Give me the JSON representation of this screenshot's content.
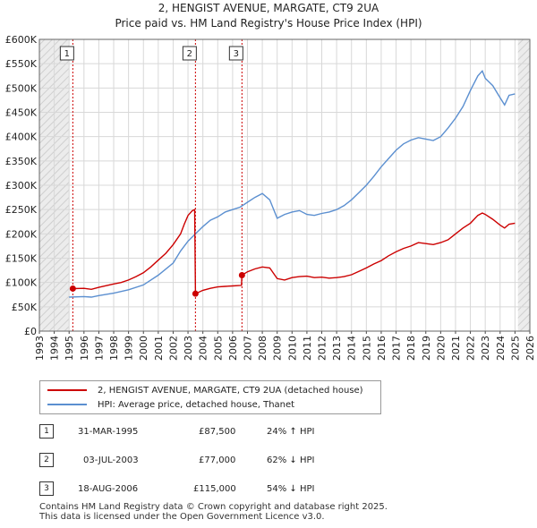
{
  "title_line1": "2, HENGIST AVENUE, MARGATE, CT9 2UA",
  "title_line2": "Price paid vs. HM Land Registry's House Price Index (HPI)",
  "colors": {
    "property": "#cc0000",
    "hpi": "#5b8fd0",
    "grid": "#d8d8d8",
    "shade": "#e6e6e6"
  },
  "legend": {
    "property_label": "2, HENGIST AVENUE, MARGATE, CT9 2UA (detached house)",
    "hpi_label": "HPI: Average price, detached house, Thanet"
  },
  "sales": [
    {
      "num": "1",
      "date": "31-MAR-1995",
      "price": "£87,500",
      "hpi": "24% ↑ HPI"
    },
    {
      "num": "2",
      "date": "03-JUL-2003",
      "price": "£77,000",
      "hpi": "62% ↓ HPI"
    },
    {
      "num": "3",
      "date": "18-AUG-2006",
      "price": "£115,000",
      "hpi": "54% ↓ HPI"
    }
  ],
  "footer": {
    "line1": "Contains HM Land Registry data © Crown copyright and database right 2025.",
    "line2": "This data is licensed under the Open Government Licence v3.0."
  },
  "chart_data": {
    "type": "line",
    "title": "2, HENGIST AVENUE, MARGATE, CT9 2UA",
    "subtitle": "Price paid vs. HM Land Registry's House Price Index (HPI)",
    "xlim": [
      1993,
      2026
    ],
    "ylim": [
      0,
      600000
    ],
    "x_ticks": [
      1993,
      1994,
      1995,
      1996,
      1997,
      1998,
      1999,
      2000,
      2001,
      2002,
      2003,
      2004,
      2005,
      2006,
      2007,
      2008,
      2009,
      2010,
      2011,
      2012,
      2013,
      2014,
      2015,
      2016,
      2017,
      2018,
      2019,
      2020,
      2021,
      2022,
      2023,
      2024,
      2025,
      2026
    ],
    "y_ticks": [
      0,
      50000,
      100000,
      150000,
      200000,
      250000,
      300000,
      350000,
      400000,
      450000,
      500000,
      550000,
      600000
    ],
    "y_tick_labels": [
      "£0",
      "£50K",
      "£100K",
      "£150K",
      "£200K",
      "£250K",
      "£300K",
      "£350K",
      "£400K",
      "£450K",
      "£500K",
      "£550K",
      "£600K"
    ],
    "hatched_before": 1995.0,
    "hatched_after": 2025.2,
    "grid": true,
    "sale_markers": [
      {
        "label": "1",
        "x": 1995.25,
        "y": 87500
      },
      {
        "label": "2",
        "x": 2003.5,
        "y": 77000
      },
      {
        "label": "3",
        "x": 2006.63,
        "y": 115000
      }
    ],
    "series": [
      {
        "name": "2, HENGIST AVENUE, MARGATE, CT9 2UA (detached house)",
        "color": "#cc0000",
        "points": [
          [
            1995.25,
            87500
          ],
          [
            1996,
            88000
          ],
          [
            1996.5,
            86000
          ],
          [
            1997,
            90000
          ],
          [
            1998,
            97000
          ],
          [
            1998.5,
            100000
          ],
          [
            1999,
            105000
          ],
          [
            1999.5,
            112000
          ],
          [
            2000,
            120000
          ],
          [
            2000.5,
            132000
          ],
          [
            2001,
            146000
          ],
          [
            2001.5,
            160000
          ],
          [
            2002,
            178000
          ],
          [
            2002.5,
            200000
          ],
          [
            2002.75,
            220000
          ],
          [
            2003.0,
            238000
          ],
          [
            2003.3,
            248000
          ],
          [
            2003.45,
            250000
          ],
          [
            2003.5,
            77000
          ],
          [
            2004,
            84000
          ],
          [
            2004.5,
            88000
          ],
          [
            2005,
            91000
          ],
          [
            2005.5,
            92000
          ],
          [
            2006,
            93000
          ],
          [
            2006.6,
            94000
          ],
          [
            2006.63,
            115000
          ],
          [
            2007,
            122000
          ],
          [
            2007.5,
            128000
          ],
          [
            2008,
            132000
          ],
          [
            2008.5,
            130000
          ],
          [
            2009,
            108000
          ],
          [
            2009.5,
            105000
          ],
          [
            2010,
            110000
          ],
          [
            2010.5,
            112000
          ],
          [
            2011,
            113000
          ],
          [
            2011.5,
            110000
          ],
          [
            2012,
            111000
          ],
          [
            2012.5,
            109000
          ],
          [
            2013,
            110000
          ],
          [
            2013.5,
            112000
          ],
          [
            2014,
            116000
          ],
          [
            2014.5,
            123000
          ],
          [
            2015,
            130000
          ],
          [
            2015.5,
            138000
          ],
          [
            2016,
            145000
          ],
          [
            2016.5,
            155000
          ],
          [
            2017,
            163000
          ],
          [
            2017.5,
            170000
          ],
          [
            2018,
            175000
          ],
          [
            2018.5,
            182000
          ],
          [
            2019,
            180000
          ],
          [
            2019.5,
            178000
          ],
          [
            2020,
            182000
          ],
          [
            2020.5,
            188000
          ],
          [
            2021,
            200000
          ],
          [
            2021.5,
            212000
          ],
          [
            2022,
            222000
          ],
          [
            2022.5,
            238000
          ],
          [
            2022.8,
            243000
          ],
          [
            2023,
            240000
          ],
          [
            2023.5,
            230000
          ],
          [
            2024,
            218000
          ],
          [
            2024.3,
            212000
          ],
          [
            2024.6,
            220000
          ],
          [
            2025.0,
            222000
          ]
        ]
      },
      {
        "name": "HPI: Average price, detached house, Thanet",
        "color": "#5b8fd0",
        "points": [
          [
            1995.0,
            70000
          ],
          [
            1996,
            71000
          ],
          [
            1996.5,
            70000
          ],
          [
            1997,
            73000
          ],
          [
            1998,
            78000
          ],
          [
            1999,
            85000
          ],
          [
            2000,
            95000
          ],
          [
            2001,
            115000
          ],
          [
            2002,
            140000
          ],
          [
            2002.5,
            165000
          ],
          [
            2003,
            185000
          ],
          [
            2003.5,
            200000
          ],
          [
            2004,
            215000
          ],
          [
            2004.5,
            228000
          ],
          [
            2005,
            235000
          ],
          [
            2005.5,
            245000
          ],
          [
            2006,
            250000
          ],
          [
            2006.5,
            255000
          ],
          [
            2007,
            265000
          ],
          [
            2007.5,
            275000
          ],
          [
            2008,
            283000
          ],
          [
            2008.5,
            270000
          ],
          [
            2009,
            232000
          ],
          [
            2009.5,
            240000
          ],
          [
            2010,
            245000
          ],
          [
            2010.5,
            248000
          ],
          [
            2011,
            240000
          ],
          [
            2011.5,
            238000
          ],
          [
            2012,
            242000
          ],
          [
            2012.5,
            245000
          ],
          [
            2013,
            250000
          ],
          [
            2013.5,
            258000
          ],
          [
            2014,
            270000
          ],
          [
            2014.5,
            285000
          ],
          [
            2015,
            300000
          ],
          [
            2015.5,
            318000
          ],
          [
            2016,
            338000
          ],
          [
            2016.5,
            355000
          ],
          [
            2017,
            372000
          ],
          [
            2017.5,
            385000
          ],
          [
            2018,
            393000
          ],
          [
            2018.5,
            398000
          ],
          [
            2019,
            395000
          ],
          [
            2019.5,
            392000
          ],
          [
            2020,
            400000
          ],
          [
            2020.5,
            418000
          ],
          [
            2021,
            438000
          ],
          [
            2021.5,
            462000
          ],
          [
            2022,
            495000
          ],
          [
            2022.5,
            525000
          ],
          [
            2022.8,
            535000
          ],
          [
            2023,
            520000
          ],
          [
            2023.5,
            505000
          ],
          [
            2024,
            480000
          ],
          [
            2024.3,
            465000
          ],
          [
            2024.6,
            485000
          ],
          [
            2025.0,
            488000
          ]
        ]
      }
    ]
  }
}
